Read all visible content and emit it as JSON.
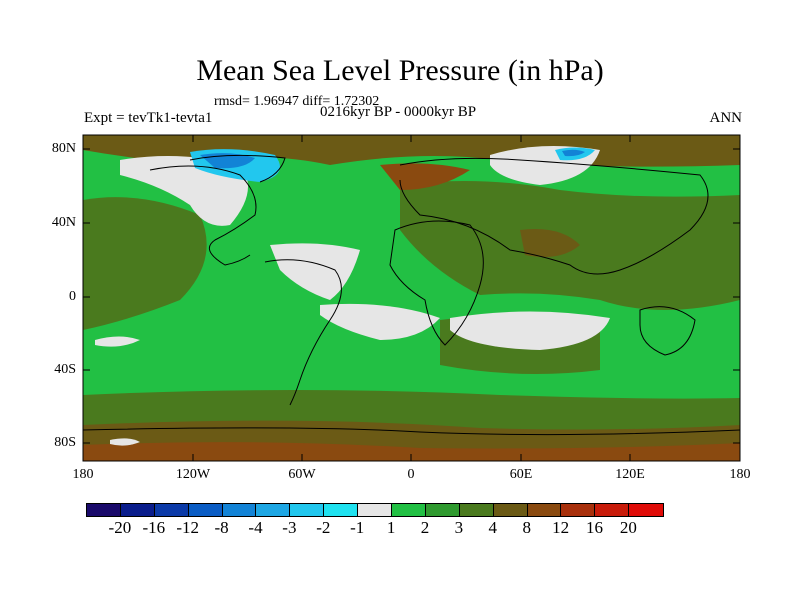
{
  "title": "Mean Sea Level Pressure (in hPa)",
  "stats": "rmsd= 1.96947  diff= 1.72302",
  "expt": "Expt = tevTk1-tevta1",
  "period": "0216kyr BP - 0000kyr BP",
  "season": "ANN",
  "lat_labels": [
    "80N",
    "40N",
    "0",
    "40S",
    "80S"
  ],
  "lon_labels": [
    "180",
    "120W",
    "60W",
    "0",
    "60E",
    "120E",
    "180"
  ],
  "colorbar": {
    "labels": [
      "-20",
      "-16",
      "-12",
      "-8",
      "-4",
      "-3",
      "-2",
      "-1",
      "1",
      "2",
      "3",
      "4",
      "8",
      "12",
      "16",
      "20"
    ],
    "colors": [
      "#1a0a6b",
      "#0a1d8c",
      "#0b3aa8",
      "#0a5cc4",
      "#1283d6",
      "#1ea7e4",
      "#22c7ee",
      "#1fe2f0",
      "#e6e6e6",
      "#22c044",
      "#2f9a2f",
      "#4a7a1e",
      "#6b5a15",
      "#8a4a10",
      "#a8300c",
      "#c81b0a",
      "#e00b08"
    ]
  },
  "map_colors": {
    "background_green": "#22c044",
    "dark_green": "#4a7a1e",
    "olive": "#6b5a15",
    "brown": "#8a4a10",
    "white": "#e6e6e6",
    "cyan": "#22c7ee",
    "blue": "#1283d6"
  }
}
